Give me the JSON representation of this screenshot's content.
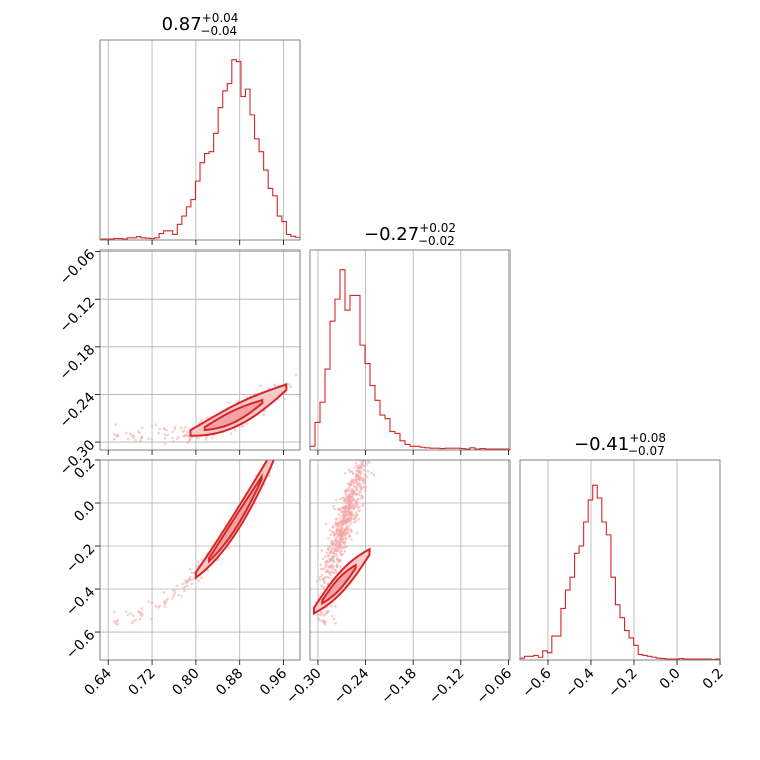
{
  "chart_data": {
    "type": "corner",
    "colors": {
      "accent": "#d62728",
      "scatter": "#f2a5a6",
      "grid": "#b0b0b0",
      "frame": "#808080"
    },
    "grid": true,
    "params": [
      {
        "title_median": "0.87",
        "title_plus": "+0.04",
        "title_minus": "−0.04",
        "range": [
          0.625,
          0.99
        ],
        "ticks": [
          {
            "v": 0.64,
            "l": "0.64"
          },
          {
            "v": 0.72,
            "l": "0.72"
          },
          {
            "v": 0.8,
            "l": "0.80"
          },
          {
            "v": 0.88,
            "l": "0.88"
          },
          {
            "v": 0.96,
            "l": "0.96"
          }
        ],
        "hist": [
          0.005,
          0.005,
          0.005,
          0.008,
          0.008,
          0.005,
          0.012,
          0.012,
          0.018,
          0.012,
          0.01,
          0.008,
          0.012,
          0.035,
          0.05,
          0.05,
          0.03,
          0.085,
          0.13,
          0.18,
          0.22,
          0.32,
          0.42,
          0.47,
          0.48,
          0.58,
          0.72,
          0.81,
          0.85,
          0.98,
          0.97,
          0.78,
          0.82,
          0.68,
          0.55,
          0.48,
          0.38,
          0.28,
          0.24,
          0.13,
          0.1,
          0.03,
          0.02,
          0.015
        ]
      },
      {
        "title_median": "−0.27",
        "title_plus": "+0.02",
        "title_minus": "−0.02",
        "range": [
          -0.31,
          -0.058
        ],
        "ticks": [
          {
            "v": -0.3,
            "l": "−0.30"
          },
          {
            "v": -0.24,
            "l": "−0.24"
          },
          {
            "v": -0.18,
            "l": "−0.18"
          },
          {
            "v": -0.12,
            "l": "−0.12"
          },
          {
            "v": -0.06,
            "l": "−0.06"
          }
        ],
        "hist": [
          0.02,
          0.15,
          0.26,
          0.44,
          0.7,
          0.82,
          0.98,
          0.76,
          0.84,
          0.84,
          0.57,
          0.47,
          0.35,
          0.27,
          0.19,
          0.17,
          0.1,
          0.09,
          0.05,
          0.03,
          0.02,
          0.02,
          0.015,
          0.012,
          0.01,
          0.01,
          0.008,
          0.01,
          0.01,
          0.01,
          0.008,
          0.005,
          0.012,
          0.005,
          0.008,
          0.005,
          0.005,
          0.005,
          0.005,
          0.005
        ]
      },
      {
        "title_median": "−0.41",
        "title_plus": "+0.08",
        "title_minus": "−0.07",
        "range": [
          -0.73,
          0.2
        ],
        "ticks": [
          {
            "v": -0.6,
            "l": "−0.6"
          },
          {
            "v": -0.4,
            "l": "−0.4"
          },
          {
            "v": -0.2,
            "l": "−0.2"
          },
          {
            "v": 0.0,
            "l": "0.0"
          },
          {
            "v": 0.2,
            "l": "0.2"
          }
        ],
        "hist": [
          0.01,
          0.02,
          0.02,
          0.025,
          0.015,
          0.05,
          0.04,
          0.13,
          0.13,
          0.28,
          0.38,
          0.45,
          0.58,
          0.62,
          0.75,
          0.87,
          0.95,
          0.88,
          0.75,
          0.68,
          0.45,
          0.3,
          0.23,
          0.16,
          0.12,
          0.08,
          0.03,
          0.025,
          0.02,
          0.015,
          0.01,
          0.008,
          0.005,
          0.005,
          0.005,
          0.008,
          0.005,
          0.005,
          0.005,
          0.005,
          0.005,
          0.005,
          0.003,
          0.005
        ]
      }
    ],
    "y_ticks_row1": [
      {
        "v": -0.06,
        "l": "−0.06"
      },
      {
        "v": -0.12,
        "l": "−0.12"
      },
      {
        "v": -0.18,
        "l": "−0.18"
      },
      {
        "v": -0.24,
        "l": "−0.24"
      },
      {
        "v": -0.3,
        "l": "−0.30"
      }
    ],
    "y_ticks_row2": [
      {
        "v": 0.2,
        "l": "0.2"
      },
      {
        "v": 0.0,
        "l": "0.0"
      },
      {
        "v": -0.2,
        "l": "−0.2"
      },
      {
        "v": -0.4,
        "l": "−0.4"
      },
      {
        "v": -0.6,
        "l": "−0.6"
      }
    ]
  }
}
